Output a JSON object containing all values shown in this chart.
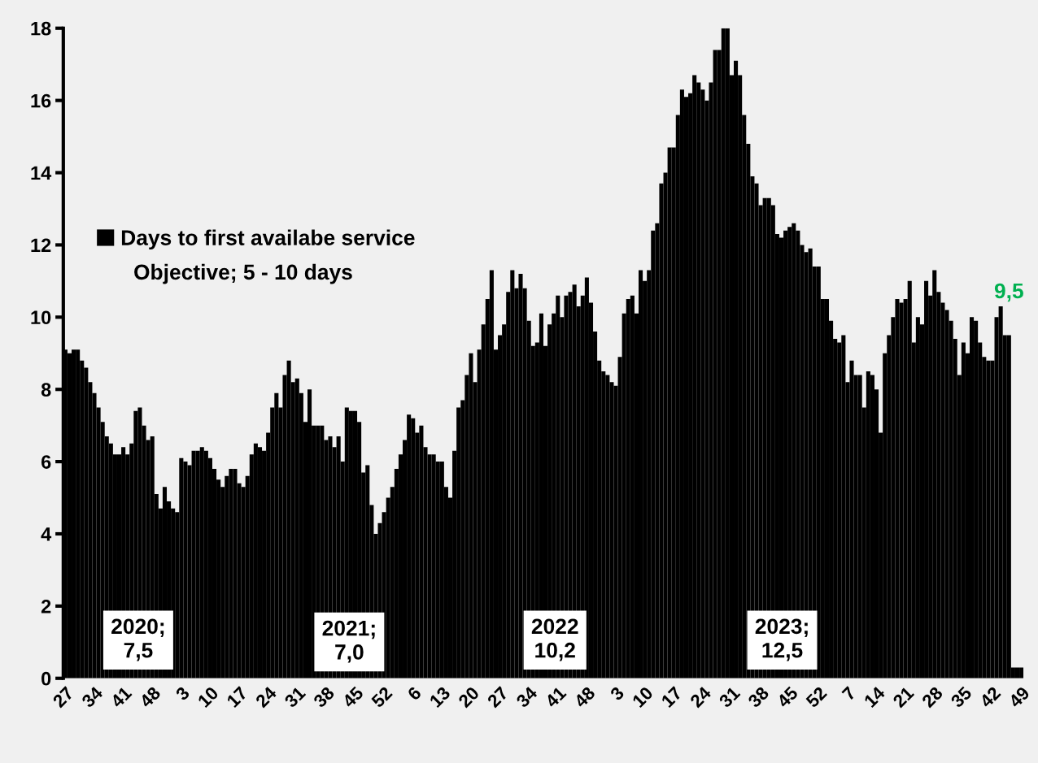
{
  "chart_data": {
    "type": "bar",
    "categories": [
      "27",
      null,
      null,
      null,
      null,
      null,
      null,
      "34",
      null,
      null,
      null,
      null,
      null,
      null,
      "41",
      null,
      null,
      null,
      null,
      null,
      null,
      "48",
      null,
      null,
      null,
      null,
      null,
      null,
      "3",
      null,
      null,
      null,
      null,
      null,
      null,
      "10",
      null,
      null,
      null,
      null,
      null,
      null,
      "17",
      null,
      null,
      null,
      null,
      null,
      null,
      "24",
      null,
      null,
      null,
      null,
      null,
      null,
      "31",
      null,
      null,
      null,
      null,
      null,
      null,
      "38",
      null,
      null,
      null,
      null,
      null,
      null,
      "45",
      null,
      null,
      null,
      null,
      null,
      null,
      "52",
      null,
      null,
      null,
      null,
      null,
      null,
      "6",
      null,
      null,
      null,
      null,
      null,
      null,
      "13",
      null,
      null,
      null,
      null,
      null,
      null,
      "20",
      null,
      null,
      null,
      null,
      null,
      null,
      "27",
      null,
      null,
      null,
      null,
      null,
      null,
      "34",
      null,
      null,
      null,
      null,
      null,
      null,
      "41",
      null,
      null,
      null,
      null,
      null,
      null,
      "48",
      null,
      null,
      null,
      null,
      null,
      null,
      "3",
      null,
      null,
      null,
      null,
      null,
      null,
      "10",
      null,
      null,
      null,
      null,
      null,
      null,
      "17",
      null,
      null,
      null,
      null,
      null,
      null,
      "24",
      null,
      null,
      null,
      null,
      null,
      null,
      "31",
      null,
      null,
      null,
      null,
      null,
      null,
      "38",
      null,
      null,
      null,
      null,
      null,
      null,
      "45",
      null,
      null,
      null,
      null,
      null,
      null,
      "52",
      null,
      null,
      null,
      null,
      null,
      null,
      "7",
      null,
      null,
      null,
      null,
      null,
      null,
      "14",
      null,
      null,
      null,
      null,
      null,
      null,
      "21",
      null,
      null,
      null,
      null,
      null,
      null,
      "28",
      null,
      null,
      null,
      null,
      null,
      null,
      "35",
      null,
      null,
      null,
      null,
      null,
      null,
      "42",
      null,
      null,
      null,
      null,
      null,
      null,
      "49"
    ],
    "series": [
      {
        "name": "Days to first availabe service",
        "color": "#000000",
        "values": [
          9.1,
          9.0,
          9.1,
          9.1,
          8.8,
          8.6,
          8.2,
          7.9,
          7.5,
          7.1,
          6.7,
          6.5,
          6.2,
          6.2,
          6.4,
          6.2,
          6.5,
          7.4,
          7.5,
          7.0,
          6.6,
          6.7,
          5.1,
          4.7,
          5.3,
          4.9,
          4.7,
          4.6,
          6.1,
          6.0,
          5.9,
          6.3,
          6.3,
          6.4,
          6.3,
          6.1,
          5.8,
          5.5,
          5.3,
          5.6,
          5.8,
          5.8,
          5.4,
          5.3,
          5.6,
          6.2,
          6.5,
          6.4,
          6.3,
          6.8,
          7.5,
          7.9,
          7.5,
          8.4,
          8.8,
          8.2,
          8.3,
          7.9,
          7.1,
          8.0,
          7.0,
          7.0,
          7.0,
          6.6,
          6.7,
          6.4,
          6.7,
          6.0,
          7.5,
          7.4,
          7.4,
          7.1,
          5.7,
          5.9,
          4.8,
          4.0,
          4.3,
          4.6,
          5.0,
          5.3,
          5.8,
          6.2,
          6.6,
          7.3,
          7.2,
          6.8,
          7.0,
          6.4,
          6.2,
          6.2,
          6.0,
          6.0,
          5.3,
          5.0,
          6.3,
          7.5,
          7.7,
          8.4,
          9.0,
          8.2,
          9.1,
          9.8,
          10.5,
          11.3,
          9.1,
          9.5,
          9.8,
          10.7,
          11.3,
          10.8,
          11.2,
          10.8,
          9.9,
          9.2,
          9.3,
          10.1,
          9.2,
          9.8,
          10.1,
          10.6,
          10.0,
          10.6,
          10.7,
          10.9,
          10.3,
          10.6,
          11.1,
          10.4,
          9.6,
          8.8,
          8.5,
          8.4,
          8.2,
          8.1,
          8.9,
          10.1,
          10.5,
          10.6,
          10.1,
          11.3,
          11.0,
          11.3,
          12.4,
          12.6,
          13.7,
          14.0,
          14.7,
          14.7,
          15.6,
          16.3,
          16.1,
          16.2,
          16.7,
          16.5,
          16.3,
          16.0,
          16.5,
          17.4,
          17.4,
          18.0,
          18.0,
          16.7,
          17.1,
          16.7,
          15.6,
          14.8,
          13.9,
          13.7,
          13.1,
          13.3,
          13.3,
          13.1,
          12.3,
          12.2,
          12.4,
          12.5,
          12.6,
          12.4,
          12.0,
          11.8,
          11.9,
          11.4,
          11.4,
          10.5,
          10.5,
          9.9,
          9.4,
          9.3,
          9.5,
          8.2,
          8.8,
          8.4,
          8.4,
          7.5,
          8.5,
          8.4,
          8.0,
          6.8,
          9.0,
          9.5,
          10.0,
          10.5,
          10.4,
          10.5,
          11.0,
          9.3,
          10.0,
          9.8,
          11.0,
          10.6,
          11.3,
          10.7,
          10.4,
          10.2,
          9.9,
          9.4,
          8.4,
          9.3,
          9.0,
          10.0,
          9.9,
          9.3,
          8.9,
          8.8,
          8.8,
          10.0,
          10.3,
          9.5,
          9.5,
          0.3,
          0.3,
          0.3
        ]
      }
    ],
    "ylim": [
      0,
      18
    ],
    "yticks": [
      0,
      2,
      4,
      6,
      8,
      10,
      12,
      14,
      16,
      18
    ],
    "legend": "left",
    "grid": false,
    "annotations": [
      "Objective; 5 - 10 days",
      "2020;\n7,5",
      "2021;\n7,0",
      "2022\n10,2",
      "2023;\n12,5",
      "9,5"
    ]
  }
}
